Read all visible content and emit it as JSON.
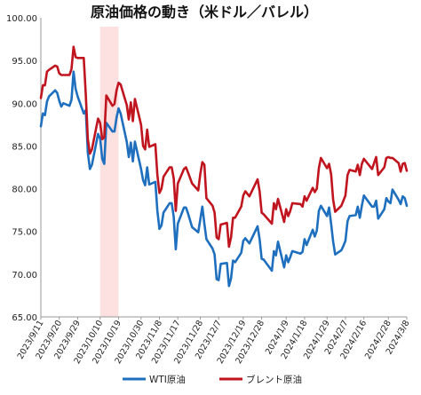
{
  "chart_data": {
    "type": "line",
    "title": "原油価格の動き（米ドル／バレル）",
    "xlabel": "",
    "ylabel": "",
    "ylim": [
      65,
      100
    ],
    "y_ticks": [
      "100.00",
      "95.00",
      "90.00",
      "85.00",
      "80.00",
      "75.00",
      "70.00",
      "65.00"
    ],
    "x_ticks": [
      "2023/9/11",
      "2023/9/20",
      "2023/9/29",
      "2023/10/10",
      "2023/10/19",
      "2023/10/30",
      "2023/11/8",
      "2023/11/17",
      "2023/11/28",
      "2023/12/7",
      "2023/12/19",
      "2023/12/28",
      "2024/1/9",
      "2024/1/18",
      "2024/1/29",
      "2024/2/7",
      "2024/2/16",
      "2024/2/28",
      "2024/3/8"
    ],
    "grid": false,
    "legend_position": "bottom",
    "shaded_region": {
      "from": "2023/10/10",
      "to": "2023/10/19",
      "color": "#fde0e0"
    },
    "series": [
      {
        "name": "WTI原油",
        "color": "#1f6fbf",
        "points": [
          [
            "2023/9/11",
            87.3
          ],
          [
            "2023/9/12",
            88.8
          ],
          [
            "2023/9/13",
            88.6
          ],
          [
            "2023/9/14",
            90.2
          ],
          [
            "2023/9/15",
            90.8
          ],
          [
            "2023/9/18",
            91.5
          ],
          [
            "2023/9/19",
            91.2
          ],
          [
            "2023/9/20",
            90.3
          ],
          [
            "2023/9/21",
            89.6
          ],
          [
            "2023/9/22",
            90.0
          ],
          [
            "2023/9/25",
            89.7
          ],
          [
            "2023/9/26",
            90.4
          ],
          [
            "2023/9/27",
            93.7
          ],
          [
            "2023/9/28",
            91.7
          ],
          [
            "2023/9/29",
            90.8
          ],
          [
            "2023/10/2",
            88.8
          ],
          [
            "2023/10/3",
            89.2
          ],
          [
            "2023/10/4",
            84.2
          ],
          [
            "2023/10/5",
            82.3
          ],
          [
            "2023/10/6",
            82.8
          ],
          [
            "2023/10/9",
            86.4
          ],
          [
            "2023/10/10",
            85.9
          ],
          [
            "2023/10/11",
            83.5
          ],
          [
            "2023/10/12",
            82.9
          ],
          [
            "2023/10/13",
            87.7
          ],
          [
            "2023/10/16",
            86.7
          ],
          [
            "2023/10/17",
            86.7
          ],
          [
            "2023/10/18",
            88.3
          ],
          [
            "2023/10/19",
            89.4
          ],
          [
            "2023/10/20",
            88.8
          ],
          [
            "2023/10/23",
            85.5
          ],
          [
            "2023/10/24",
            83.7
          ],
          [
            "2023/10/25",
            85.4
          ],
          [
            "2023/10/26",
            83.2
          ],
          [
            "2023/10/27",
            85.5
          ],
          [
            "2023/10/30",
            82.3
          ],
          [
            "2023/10/31",
            81.0
          ],
          [
            "2023/11/1",
            80.4
          ],
          [
            "2023/11/2",
            82.5
          ],
          [
            "2023/11/3",
            80.5
          ],
          [
            "2023/11/6",
            80.8
          ],
          [
            "2023/11/7",
            77.4
          ],
          [
            "2023/11/8",
            75.3
          ],
          [
            "2023/11/9",
            75.7
          ],
          [
            "2023/11/10",
            77.2
          ],
          [
            "2023/11/13",
            78.3
          ],
          [
            "2023/11/14",
            78.3
          ],
          [
            "2023/11/15",
            76.7
          ],
          [
            "2023/11/16",
            72.9
          ],
          [
            "2023/11/17",
            75.9
          ],
          [
            "2023/11/20",
            77.8
          ],
          [
            "2023/11/21",
            77.8
          ],
          [
            "2023/11/22",
            77.1
          ],
          [
            "2023/11/24",
            75.5
          ],
          [
            "2023/11/27",
            74.9
          ],
          [
            "2023/11/28",
            76.4
          ],
          [
            "2023/11/29",
            77.9
          ],
          [
            "2023/11/30",
            75.9
          ],
          [
            "2023/12/1",
            74.1
          ],
          [
            "2023/12/4",
            73.0
          ],
          [
            "2023/12/5",
            72.3
          ],
          [
            "2023/12/6",
            69.4
          ],
          [
            "2023/12/7",
            69.3
          ],
          [
            "2023/12/8",
            71.2
          ],
          [
            "2023/12/11",
            71.3
          ],
          [
            "2023/12/12",
            68.6
          ],
          [
            "2023/12/13",
            69.5
          ],
          [
            "2023/12/14",
            71.6
          ],
          [
            "2023/12/15",
            71.4
          ],
          [
            "2023/12/18",
            72.5
          ],
          [
            "2023/12/19",
            73.9
          ],
          [
            "2023/12/20",
            74.2
          ],
          [
            "2023/12/21",
            73.9
          ],
          [
            "2023/12/22",
            73.6
          ],
          [
            "2023/12/26",
            75.6
          ],
          [
            "2023/12/27",
            74.1
          ],
          [
            "2023/12/28",
            71.8
          ],
          [
            "2023/12/29",
            71.7
          ],
          [
            "2024/1/2",
            70.4
          ],
          [
            "2024/1/3",
            72.7
          ],
          [
            "2024/1/4",
            72.2
          ],
          [
            "2024/1/5",
            73.8
          ],
          [
            "2024/1/8",
            70.8
          ],
          [
            "2024/1/9",
            72.2
          ],
          [
            "2024/1/10",
            71.4
          ],
          [
            "2024/1/11",
            72.0
          ],
          [
            "2024/1/12",
            72.7
          ],
          [
            "2024/1/16",
            72.4
          ],
          [
            "2024/1/17",
            72.6
          ],
          [
            "2024/1/18",
            74.1
          ],
          [
            "2024/1/19",
            73.4
          ],
          [
            "2024/1/22",
            75.2
          ],
          [
            "2024/1/23",
            74.4
          ],
          [
            "2024/1/24",
            75.1
          ],
          [
            "2024/1/25",
            77.4
          ],
          [
            "2024/1/26",
            78.0
          ],
          [
            "2024/1/29",
            76.8
          ],
          [
            "2024/1/30",
            77.8
          ],
          [
            "2024/1/31",
            75.9
          ],
          [
            "2024/2/1",
            73.8
          ],
          [
            "2024/2/2",
            72.3
          ],
          [
            "2024/2/5",
            72.8
          ],
          [
            "2024/2/6",
            73.3
          ],
          [
            "2024/2/7",
            73.9
          ],
          [
            "2024/2/8",
            76.2
          ],
          [
            "2024/2/9",
            76.8
          ],
          [
            "2024/2/12",
            76.9
          ],
          [
            "2024/2/13",
            77.9
          ],
          [
            "2024/2/14",
            76.6
          ],
          [
            "2024/2/15",
            78.0
          ],
          [
            "2024/2/16",
            79.2
          ],
          [
            "2024/2/20",
            77.9
          ],
          [
            "2024/2/21",
            77.9
          ],
          [
            "2024/2/22",
            78.6
          ],
          [
            "2024/2/23",
            76.5
          ],
          [
            "2024/2/26",
            77.6
          ],
          [
            "2024/2/27",
            78.9
          ],
          [
            "2024/2/28",
            78.5
          ],
          [
            "2024/2/29",
            78.3
          ],
          [
            "2024/3/1",
            79.9
          ],
          [
            "2024/3/4",
            78.7
          ],
          [
            "2024/3/5",
            78.2
          ],
          [
            "2024/3/6",
            79.1
          ],
          [
            "2024/3/7",
            78.9
          ],
          [
            "2024/3/8",
            78.0
          ]
        ]
      },
      {
        "name": "ブレント原油",
        "color": "#c0151f",
        "points": [
          [
            "2023/9/11",
            90.6
          ],
          [
            "2023/9/12",
            92.1
          ],
          [
            "2023/9/13",
            92.1
          ],
          [
            "2023/9/14",
            93.7
          ],
          [
            "2023/9/15",
            93.9
          ],
          [
            "2023/9/18",
            94.4
          ],
          [
            "2023/9/19",
            94.3
          ],
          [
            "2023/9/20",
            93.5
          ],
          [
            "2023/9/21",
            93.3
          ],
          [
            "2023/9/22",
            93.3
          ],
          [
            "2023/9/25",
            93.3
          ],
          [
            "2023/9/26",
            94.0
          ],
          [
            "2023/9/27",
            96.6
          ],
          [
            "2023/9/28",
            95.4
          ],
          [
            "2023/9/29",
            95.3
          ],
          [
            "2023/10/2",
            95.3
          ],
          [
            "2023/10/3",
            91.0
          ],
          [
            "2023/10/4",
            85.8
          ],
          [
            "2023/10/5",
            84.1
          ],
          [
            "2023/10/6",
            84.6
          ],
          [
            "2023/10/9",
            88.2
          ],
          [
            "2023/10/10",
            87.7
          ],
          [
            "2023/10/11",
            85.8
          ],
          [
            "2023/10/12",
            86.0
          ],
          [
            "2023/10/13",
            90.9
          ],
          [
            "2023/10/16",
            89.7
          ],
          [
            "2023/10/17",
            89.9
          ],
          [
            "2023/10/18",
            91.5
          ],
          [
            "2023/10/19",
            92.4
          ],
          [
            "2023/10/20",
            92.2
          ],
          [
            "2023/10/23",
            89.8
          ],
          [
            "2023/10/24",
            88.1
          ],
          [
            "2023/10/25",
            90.1
          ],
          [
            "2023/10/26",
            87.9
          ],
          [
            "2023/10/27",
            90.5
          ],
          [
            "2023/10/30",
            87.5
          ],
          [
            "2023/10/31",
            85.0
          ],
          [
            "2023/11/1",
            84.6
          ],
          [
            "2023/11/2",
            86.9
          ],
          [
            "2023/11/3",
            84.9
          ],
          [
            "2023/11/6",
            85.2
          ],
          [
            "2023/11/7",
            81.6
          ],
          [
            "2023/11/8",
            79.5
          ],
          [
            "2023/11/9",
            80.0
          ],
          [
            "2023/11/10",
            81.4
          ],
          [
            "2023/11/13",
            82.5
          ],
          [
            "2023/11/14",
            82.5
          ],
          [
            "2023/11/15",
            81.2
          ],
          [
            "2023/11/16",
            77.4
          ],
          [
            "2023/11/17",
            80.6
          ],
          [
            "2023/11/20",
            82.3
          ],
          [
            "2023/11/21",
            82.5
          ],
          [
            "2023/11/22",
            81.9
          ],
          [
            "2023/11/24",
            80.6
          ],
          [
            "2023/11/27",
            79.8
          ],
          [
            "2023/11/28",
            81.7
          ],
          [
            "2023/11/29",
            83.1
          ],
          [
            "2023/11/30",
            82.8
          ],
          [
            "2023/12/1",
            78.9
          ],
          [
            "2023/12/4",
            78.0
          ],
          [
            "2023/12/5",
            77.2
          ],
          [
            "2023/12/6",
            74.3
          ],
          [
            "2023/12/7",
            74.1
          ],
          [
            "2023/12/8",
            75.8
          ],
          [
            "2023/12/11",
            76.0
          ],
          [
            "2023/12/12",
            73.2
          ],
          [
            "2023/12/13",
            74.3
          ],
          [
            "2023/12/14",
            76.6
          ],
          [
            "2023/12/15",
            76.6
          ],
          [
            "2023/12/18",
            77.9
          ],
          [
            "2023/12/19",
            79.2
          ],
          [
            "2023/12/20",
            79.7
          ],
          [
            "2023/12/21",
            79.4
          ],
          [
            "2023/12/22",
            79.1
          ],
          [
            "2023/12/26",
            81.1
          ],
          [
            "2023/12/27",
            79.7
          ],
          [
            "2023/12/28",
            77.2
          ],
          [
            "2023/12/29",
            77.0
          ],
          [
            "2024/1/2",
            75.9
          ],
          [
            "2024/1/3",
            78.3
          ],
          [
            "2024/1/4",
            77.6
          ],
          [
            "2024/1/5",
            78.8
          ],
          [
            "2024/1/8",
            76.1
          ],
          [
            "2024/1/9",
            77.6
          ],
          [
            "2024/1/10",
            76.8
          ],
          [
            "2024/1/11",
            77.4
          ],
          [
            "2024/1/12",
            78.3
          ],
          [
            "2024/1/16",
            78.2
          ],
          [
            "2024/1/17",
            77.9
          ],
          [
            "2024/1/18",
            79.1
          ],
          [
            "2024/1/19",
            78.6
          ],
          [
            "2024/1/22",
            80.1
          ],
          [
            "2024/1/23",
            79.6
          ],
          [
            "2024/1/24",
            80.0
          ],
          [
            "2024/1/25",
            82.4
          ],
          [
            "2024/1/26",
            83.6
          ],
          [
            "2024/1/29",
            82.4
          ],
          [
            "2024/1/30",
            82.9
          ],
          [
            "2024/1/31",
            81.7
          ],
          [
            "2024/2/1",
            78.7
          ],
          [
            "2024/2/2",
            77.3
          ],
          [
            "2024/2/5",
            78.0
          ],
          [
            "2024/2/6",
            78.6
          ],
          [
            "2024/2/7",
            79.2
          ],
          [
            "2024/2/8",
            81.6
          ],
          [
            "2024/2/9",
            82.2
          ],
          [
            "2024/2/12",
            82.0
          ],
          [
            "2024/2/13",
            82.8
          ],
          [
            "2024/2/14",
            81.6
          ],
          [
            "2024/2/15",
            82.9
          ],
          [
            "2024/2/16",
            83.5
          ],
          [
            "2024/2/20",
            82.3
          ],
          [
            "2024/2/21",
            83.0
          ],
          [
            "2024/2/22",
            83.7
          ],
          [
            "2024/2/23",
            81.6
          ],
          [
            "2024/2/26",
            82.5
          ],
          [
            "2024/2/27",
            83.6
          ],
          [
            "2024/2/28",
            83.7
          ],
          [
            "2024/2/29",
            83.6
          ],
          [
            "2024/3/1",
            83.6
          ],
          [
            "2024/3/4",
            83.0
          ],
          [
            "2024/3/5",
            82.0
          ],
          [
            "2024/3/6",
            82.9
          ],
          [
            "2024/3/7",
            83.0
          ],
          [
            "2024/3/8",
            82.1
          ]
        ]
      }
    ]
  }
}
